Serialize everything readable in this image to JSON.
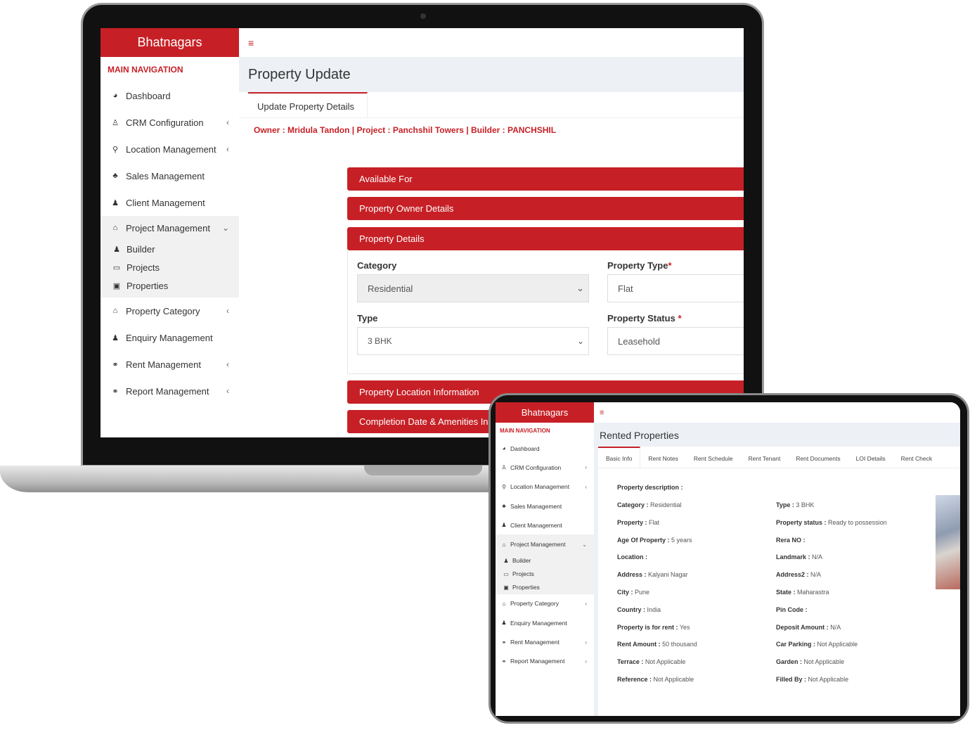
{
  "laptop": {
    "brand": "Bhatnagars",
    "nav_heading": "MAIN NAVIGATION",
    "menu_icon": "hamburger-icon",
    "nav": [
      {
        "label": "Dashboard",
        "icon": "dashboard-icon",
        "chevron": ""
      },
      {
        "label": "CRM Configuration",
        "icon": "user-tie-icon",
        "chevron": "‹"
      },
      {
        "label": "Location Management",
        "icon": "map-marker-icon",
        "chevron": "‹"
      },
      {
        "label": "Sales Management",
        "icon": "sitemap-icon",
        "chevron": ""
      },
      {
        "label": "Client Management",
        "icon": "person-icon",
        "chevron": ""
      },
      {
        "label": "Project Management",
        "icon": "bank-icon",
        "chevron": "⌄"
      },
      {
        "label": "Property Category",
        "icon": "home-icon",
        "chevron": "‹"
      },
      {
        "label": "Enquiry Management",
        "icon": "person-icon",
        "chevron": ""
      },
      {
        "label": "Rent Management",
        "icon": "handshake-icon",
        "chevron": "‹"
      },
      {
        "label": "Report Management",
        "icon": "handshake-icon",
        "chevron": "‹"
      }
    ],
    "submenu": [
      {
        "label": "Builder",
        "icon": "person-icon"
      },
      {
        "label": "Projects",
        "icon": "monitor-icon"
      },
      {
        "label": "Properties",
        "icon": "building-icon"
      }
    ],
    "page_title": "Property Update",
    "tab": "Update Property Details",
    "owner_line": "Owner : Mridula Tandon | Project : Panchshil Towers | Builder : PANCHSHIL",
    "sections": [
      "Available For",
      "Property Owner Details",
      "Property Details",
      "Property Location Information",
      "Completion Date & Amenities In"
    ],
    "form": {
      "category_label": "Category",
      "category_value": "Residential",
      "property_type_label": "Property Type",
      "property_type_value": "Flat",
      "type_label": "Type",
      "type_value": "3 BHK",
      "property_status_label": "Property Status",
      "property_status_value": "Leasehold",
      "required": "*"
    }
  },
  "tablet": {
    "brand": "Bhatnagars",
    "nav_heading": "MAIN NAVIGATION",
    "nav": [
      {
        "label": "Dashboard",
        "chevron": ""
      },
      {
        "label": "CRM Configuration",
        "chevron": "‹"
      },
      {
        "label": "Location Management",
        "chevron": "‹"
      },
      {
        "label": "Sales Management",
        "chevron": ""
      },
      {
        "label": "Client Management",
        "chevron": ""
      },
      {
        "label": "Project Management",
        "chevron": "⌄"
      },
      {
        "label": "Property Category",
        "chevron": "‹"
      },
      {
        "label": "Enquiry Management",
        "chevron": ""
      },
      {
        "label": "Rent Management",
        "chevron": "‹"
      },
      {
        "label": "Report Management",
        "chevron": "‹"
      }
    ],
    "submenu": [
      "Builder",
      "Projects",
      "Properties"
    ],
    "page_title": "Rented Properties",
    "tabs": [
      "Basic Info",
      "Rent Notes",
      "Rent Schedule",
      "Rent Tenant",
      "Rent Documents",
      "LOI Details",
      "Rent Check"
    ],
    "description_label": "Property description :",
    "left": [
      [
        "Category :",
        "Residential"
      ],
      [
        "Property :",
        "Flat"
      ],
      [
        "Age Of Property :",
        "5 years"
      ],
      [
        "Location :",
        ""
      ],
      [
        "Address :",
        "Kalyani Nagar"
      ],
      [
        "City :",
        "Pune"
      ],
      [
        "Country :",
        "India"
      ],
      [
        "Property is for rent :",
        "Yes"
      ],
      [
        "Rent Amount :",
        "50  thousand"
      ],
      [
        "Terrace :",
        "Not Applicable"
      ],
      [
        "Reference :",
        "Not Applicable"
      ]
    ],
    "right": [
      [
        "Type :",
        "3 BHK"
      ],
      [
        "Property status :",
        "Ready to possession"
      ],
      [
        "Rera NO :",
        ""
      ],
      [
        "Landmark :",
        "N/A"
      ],
      [
        "Address2 :",
        "N/A"
      ],
      [
        "State :",
        "Maharastra"
      ],
      [
        "Pin Code :",
        ""
      ],
      [
        "Deposit Amount :",
        "N/A"
      ],
      [
        "Car Parking :",
        "Not Applicable"
      ],
      [
        "Garden :",
        "Not Applicable"
      ],
      [
        "Filled By :",
        "Not Applicable"
      ]
    ]
  },
  "colors": {
    "brand": "#c62026",
    "title_bg": "#edf0f5"
  }
}
